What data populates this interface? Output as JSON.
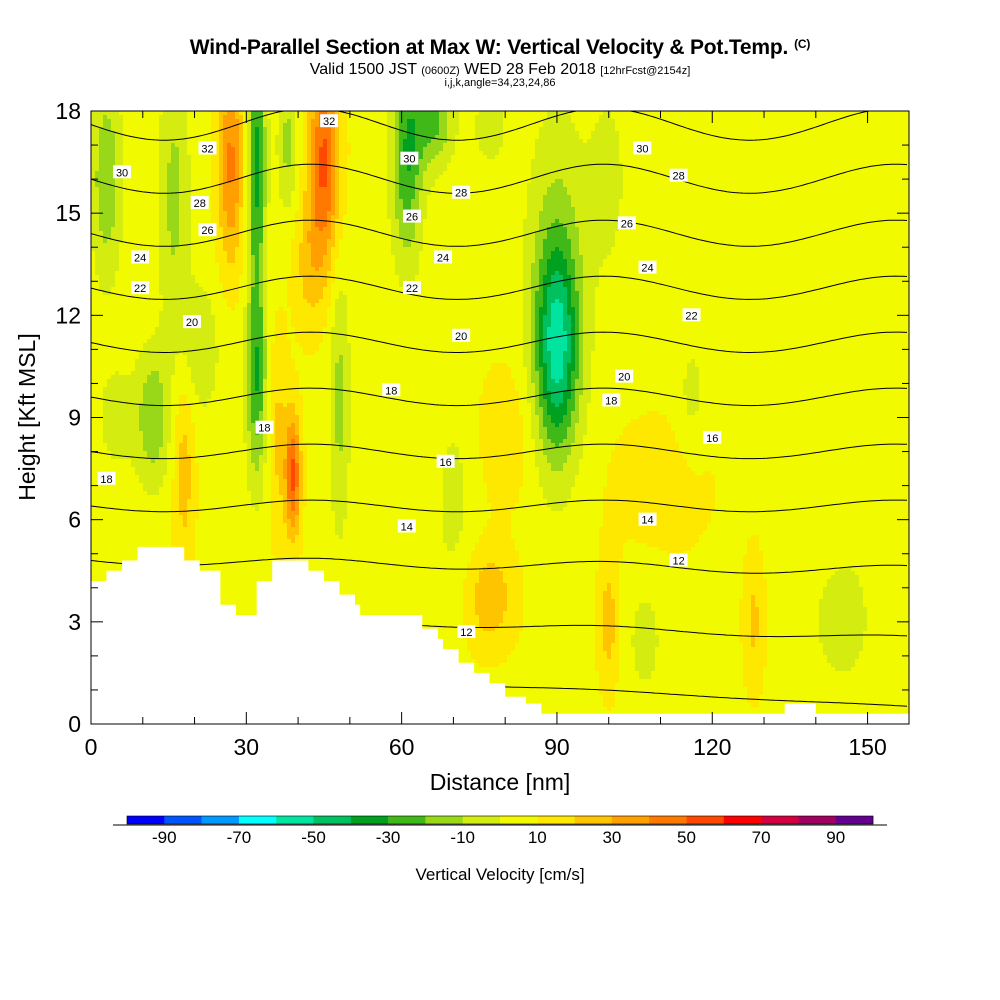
{
  "title": "Wind-Parallel Section at Max W: Vertical Velocity & Pot.Temp.",
  "title_mark": "(C)",
  "subtitle_prefix": "Valid 1500 JST",
  "subtitle_utc": "(0600Z)",
  "subtitle_date": "WED 28 Feb 2018",
  "subtitle_fcst": "[12hrFcst@2154z]",
  "subsubtitle": "i,j,k,angle=34,23,24,86",
  "colors": {
    "terrain": "#ffffff",
    "background": "#ffffff",
    "contour": "#000000"
  },
  "chart_data": {
    "type": "heatmap",
    "xlabel": "Distance [nm]",
    "ylabel": "Height [Kft MSL]",
    "xlim": [
      0,
      158
    ],
    "ylim": [
      0,
      18
    ],
    "xticks": [
      0,
      30,
      60,
      90,
      120,
      150
    ],
    "yticks": [
      0,
      3,
      6,
      9,
      12,
      15,
      18
    ],
    "grid": false,
    "fill_variable": "Vertical Velocity [cm/s]",
    "contour_variable": "Potential temperature",
    "colorbar": {
      "label": "Vertical Velocity [cm/s]",
      "tick_labels": [
        "-90",
        "-70",
        "-50",
        "-30",
        "-10",
        "10",
        "30",
        "50",
        "70",
        "90"
      ],
      "levels": [
        -100,
        -90,
        -80,
        -70,
        -60,
        -50,
        -40,
        -30,
        -20,
        -10,
        0,
        10,
        20,
        30,
        40,
        50,
        60,
        70,
        80,
        90,
        100
      ],
      "colors": [
        "#0000ff",
        "#0055ff",
        "#0099ff",
        "#00ffff",
        "#00e4a0",
        "#00c060",
        "#00a020",
        "#40b818",
        "#98d818",
        "#d4ec10",
        "#f2fa00",
        "#ffe800",
        "#ffc400",
        "#ffa000",
        "#ff7800",
        "#ff4800",
        "#ff0000",
        "#d20040",
        "#a00060",
        "#640090"
      ],
      "placement": "bottom"
    },
    "w_features": [
      {
        "x": 3,
        "y": 16,
        "w": -25,
        "sx": 3,
        "sy": 3
      },
      {
        "x": 16,
        "y": 15.5,
        "w": -20,
        "sx": 3,
        "sy": 4
      },
      {
        "x": 27,
        "y": 16.5,
        "w": 35,
        "sx": 2.5,
        "sy": 3
      },
      {
        "x": 32,
        "y": 16.5,
        "w": -40,
        "sx": 1.8,
        "sy": 4
      },
      {
        "x": 38,
        "y": 17,
        "w": -20,
        "sx": 2,
        "sy": 2
      },
      {
        "x": 45,
        "y": 16.5,
        "w": 45,
        "sx": 3,
        "sy": 3
      },
      {
        "x": 42,
        "y": 13.5,
        "w": 15,
        "sx": 3,
        "sy": 2
      },
      {
        "x": 61,
        "y": 16.5,
        "w": -35,
        "sx": 3,
        "sy": 3
      },
      {
        "x": 66,
        "y": 17.8,
        "w": -30,
        "sx": 4,
        "sy": 1.5
      },
      {
        "x": 77,
        "y": 17.5,
        "w": -15,
        "sx": 3,
        "sy": 1
      },
      {
        "x": 90,
        "y": 11,
        "w": -48,
        "sx": 4,
        "sy": 3
      },
      {
        "x": 90,
        "y": 13,
        "w": -20,
        "sx": 6,
        "sy": 5
      },
      {
        "x": 100,
        "y": 16,
        "w": -10,
        "sx": 4,
        "sy": 3
      },
      {
        "x": 135,
        "y": 14,
        "w": -5,
        "sx": 12,
        "sy": 4
      },
      {
        "x": 32,
        "y": 10,
        "w": -35,
        "sx": 2,
        "sy": 3
      },
      {
        "x": 21,
        "y": 11,
        "w": -15,
        "sx": 4,
        "sy": 2
      },
      {
        "x": 39,
        "y": 7.3,
        "w": 45,
        "sx": 1.5,
        "sy": 1.8
      },
      {
        "x": 36,
        "y": 8.5,
        "w": 15,
        "sx": 2,
        "sy": 3
      },
      {
        "x": 18,
        "y": 7.5,
        "w": 18,
        "sx": 2,
        "sy": 3
      },
      {
        "x": 12,
        "y": 9,
        "w": -25,
        "sx": 3,
        "sy": 2
      },
      {
        "x": 5,
        "y": 9,
        "w": -10,
        "sx": 5,
        "sy": 2
      },
      {
        "x": 48,
        "y": 9.5,
        "w": -20,
        "sx": 2,
        "sy": 4
      },
      {
        "x": 70,
        "y": 6.5,
        "w": -10,
        "sx": 4,
        "sy": 3
      },
      {
        "x": 77,
        "y": 3.7,
        "w": 20,
        "sx": 5,
        "sy": 1.5
      },
      {
        "x": 100,
        "y": 3,
        "w": 18,
        "sx": 2,
        "sy": 2
      },
      {
        "x": 107,
        "y": 2.5,
        "w": -10,
        "sx": 4,
        "sy": 2
      },
      {
        "x": 128,
        "y": 3,
        "w": 15,
        "sx": 2,
        "sy": 2
      },
      {
        "x": 145,
        "y": 3,
        "w": -12,
        "sx": 6,
        "sy": 2
      },
      {
        "x": 80,
        "y": 8.5,
        "w": 12,
        "sx": 5,
        "sy": 2
      },
      {
        "x": 110,
        "y": 7,
        "w": 10,
        "sx": 10,
        "sy": 2
      },
      {
        "x": 116,
        "y": 9.5,
        "w": -10,
        "sx": 3,
        "sy": 2
      },
      {
        "x": 150,
        "y": 8,
        "w": -5,
        "sx": 5,
        "sy": 3
      }
    ],
    "w_base": 7,
    "theta_levels": [
      12,
      14,
      16,
      18,
      20,
      22,
      24,
      26,
      28,
      30,
      32
    ],
    "contour_labels": [
      {
        "text": "32",
        "x": 46,
        "y": 17.7
      },
      {
        "text": "32",
        "x": 22.5,
        "y": 16.9
      },
      {
        "text": "30",
        "x": 6,
        "y": 16.2
      },
      {
        "text": "30",
        "x": 61.5,
        "y": 16.6
      },
      {
        "text": "30",
        "x": 106.5,
        "y": 16.9
      },
      {
        "text": "28",
        "x": 21,
        "y": 15.3
      },
      {
        "text": "28",
        "x": 71.5,
        "y": 15.6
      },
      {
        "text": "28",
        "x": 113.5,
        "y": 16.1
      },
      {
        "text": "26",
        "x": 22.5,
        "y": 14.5
      },
      {
        "text": "26",
        "x": 62,
        "y": 14.9
      },
      {
        "text": "26",
        "x": 103.5,
        "y": 14.7
      },
      {
        "text": "24",
        "x": 9.5,
        "y": 13.7
      },
      {
        "text": "24",
        "x": 68,
        "y": 13.7
      },
      {
        "text": "24",
        "x": 107.5,
        "y": 13.4
      },
      {
        "text": "22",
        "x": 9.5,
        "y": 12.8
      },
      {
        "text": "22",
        "x": 62,
        "y": 12.8
      },
      {
        "text": "22",
        "x": 116,
        "y": 12.0
      },
      {
        "text": "20",
        "x": 19.5,
        "y": 11.8
      },
      {
        "text": "20",
        "x": 71.5,
        "y": 11.4
      },
      {
        "text": "20",
        "x": 103,
        "y": 10.2
      },
      {
        "text": "18",
        "x": 58,
        "y": 9.8
      },
      {
        "text": "18",
        "x": 100.5,
        "y": 9.5
      },
      {
        "text": "18",
        "x": 33.5,
        "y": 8.7
      },
      {
        "text": "18",
        "x": 3,
        "y": 7.2
      },
      {
        "text": "16",
        "x": 68.5,
        "y": 7.7
      },
      {
        "text": "16",
        "x": 120,
        "y": 8.4
      },
      {
        "text": "14",
        "x": 61,
        "y": 5.8
      },
      {
        "text": "14",
        "x": 107.5,
        "y": 6.0
      },
      {
        "text": "12",
        "x": 72.5,
        "y": 2.7
      },
      {
        "text": "12",
        "x": 113.5,
        "y": 4.8
      }
    ],
    "terrain_profile": [
      [
        0,
        4.2
      ],
      [
        3,
        4.2
      ],
      [
        3,
        4.5
      ],
      [
        6,
        4.5
      ],
      [
        6,
        4.8
      ],
      [
        9,
        4.8
      ],
      [
        9,
        5.2
      ],
      [
        18,
        5.2
      ],
      [
        18,
        4.8
      ],
      [
        21,
        4.8
      ],
      [
        21,
        4.5
      ],
      [
        25,
        4.5
      ],
      [
        25,
        3.5
      ],
      [
        28,
        3.5
      ],
      [
        28,
        3.2
      ],
      [
        32,
        3.2
      ],
      [
        32,
        4.2
      ],
      [
        35,
        4.2
      ],
      [
        35,
        4.8
      ],
      [
        42,
        4.8
      ],
      [
        42,
        4.5
      ],
      [
        45,
        4.5
      ],
      [
        45,
        4.2
      ],
      [
        48,
        4.2
      ],
      [
        48,
        3.8
      ],
      [
        51,
        3.8
      ],
      [
        51,
        3.5
      ],
      [
        52,
        3.5
      ],
      [
        52,
        3.2
      ],
      [
        64,
        3.2
      ],
      [
        64,
        2.8
      ],
      [
        67,
        2.8
      ],
      [
        67,
        2.5
      ],
      [
        68,
        2.5
      ],
      [
        68,
        2.2
      ],
      [
        71,
        2.2
      ],
      [
        71,
        1.8
      ],
      [
        74,
        1.8
      ],
      [
        74,
        1.5
      ],
      [
        77,
        1.5
      ],
      [
        77,
        1.2
      ],
      [
        80,
        1.2
      ],
      [
        80,
        0.8
      ],
      [
        84,
        0.8
      ],
      [
        84,
        0.6
      ],
      [
        87,
        0.6
      ],
      [
        87,
        0.3
      ],
      [
        134,
        0.3
      ],
      [
        134,
        0.6
      ],
      [
        140,
        0.6
      ],
      [
        140,
        0.3
      ],
      [
        158,
        0.3
      ]
    ],
    "annotations": [
      "32",
      "30",
      "28",
      "26",
      "24",
      "22",
      "20",
      "18",
      "16",
      "14",
      "12"
    ]
  }
}
